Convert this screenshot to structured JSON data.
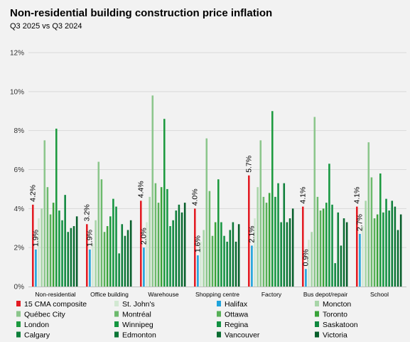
{
  "chart_data": {
    "type": "bar",
    "title": "Non-residential building construction price inflation",
    "subtitle": "Q3 2025 vs Q3 2024",
    "y_unit": "%",
    "ylim": [
      0,
      12
    ],
    "yticks": [
      0,
      2,
      4,
      6,
      8,
      10,
      12
    ],
    "grid": true,
    "legend_position": "bottom",
    "categories": [
      "Non-residential",
      "Office building",
      "Warehouse",
      "Shopping centre",
      "Factory",
      "Bus depot/repair",
      "School"
    ],
    "series": [
      {
        "name": "15 CMA composite",
        "color": "#e31b23",
        "values": [
          4.2,
          3.2,
          4.4,
          4.0,
          5.7,
          4.1,
          4.1
        ],
        "labels": [
          "4.2%",
          "3.2%",
          "4.4%",
          "4.0%",
          "5.7%",
          "4.1%",
          "4.1%"
        ]
      },
      {
        "name": "Halifax",
        "color": "#1fa3dc",
        "values": [
          1.9,
          1.9,
          2.0,
          1.6,
          2.1,
          0.9,
          2.7
        ],
        "labels": [
          "1.9%",
          "1.9%",
          "2.0%",
          "1.6%",
          "2.1%",
          "0.9%",
          "2.7%"
        ]
      },
      {
        "name": "St. John's",
        "color": "#d2e8d2",
        "values": [
          3.5,
          2.2,
          3.3,
          2.3,
          3.5,
          2.4,
          3.1
        ]
      },
      {
        "name": "Moncton",
        "color": "#a8d5a8",
        "values": [
          4.0,
          3.4,
          4.6,
          2.9,
          5.1,
          2.8,
          4.4
        ]
      },
      {
        "name": "Québec City",
        "color": "#8cc68c",
        "values": [
          7.5,
          6.4,
          9.8,
          7.6,
          7.5,
          8.7,
          7.4
        ]
      },
      {
        "name": "Montréal",
        "color": "#6dba6d",
        "values": [
          5.1,
          5.5,
          5.3,
          4.9,
          4.6,
          4.6,
          5.6
        ]
      },
      {
        "name": "Ottawa",
        "color": "#57b057",
        "values": [
          3.7,
          2.8,
          4.3,
          2.6,
          4.3,
          3.9,
          3.5
        ]
      },
      {
        "name": "Toronto",
        "color": "#3aa33a",
        "values": [
          4.3,
          3.1,
          5.1,
          3.3,
          4.8,
          4.0,
          3.7
        ]
      },
      {
        "name": "London",
        "color": "#1d9a3f",
        "values": [
          8.1,
          3.6,
          8.6,
          5.5,
          9.0,
          4.3,
          5.8
        ]
      },
      {
        "name": "Winnipeg",
        "color": "#159640",
        "values": [
          3.9,
          4.5,
          5.0,
          3.3,
          4.6,
          6.3,
          3.8
        ]
      },
      {
        "name": "Regina",
        "color": "#129142",
        "values": [
          3.4,
          4.1,
          3.1,
          2.6,
          5.3,
          4.2,
          4.5
        ]
      },
      {
        "name": "Saskatoon",
        "color": "#10883f",
        "values": [
          4.7,
          1.7,
          3.4,
          2.3,
          3.3,
          1.2,
          3.9
        ]
      },
      {
        "name": "Calgary",
        "color": "#0e7f3a",
        "values": [
          2.8,
          3.2,
          3.9,
          2.9,
          5.3,
          3.8,
          4.4
        ]
      },
      {
        "name": "Edmonton",
        "color": "#0c7636",
        "values": [
          3.0,
          2.6,
          4.2,
          3.3,
          3.3,
          2.1,
          4.1
        ]
      },
      {
        "name": "Vancouver",
        "color": "#0a6c31",
        "values": [
          3.1,
          2.9,
          3.8,
          2.3,
          3.5,
          3.5,
          2.9
        ]
      },
      {
        "name": "Victoria",
        "color": "#075e2a",
        "values": [
          3.6,
          3.4,
          4.3,
          3.2,
          4.0,
          3.3,
          3.7
        ]
      }
    ],
    "bar_order": [
      "15 CMA composite",
      "Halifax",
      "St. John's",
      "Moncton",
      "Québec City",
      "Montréal",
      "Ottawa",
      "Toronto",
      "London",
      "Winnipeg",
      "Regina",
      "Saskatoon",
      "Calgary",
      "Edmonton",
      "Vancouver",
      "Victoria"
    ],
    "legend_order": [
      "15 CMA composite",
      "St. John's",
      "Halifax",
      "Moncton",
      "Québec City",
      "Montréal",
      "Ottawa",
      "Toronto",
      "London",
      "Winnipeg",
      "Regina",
      "Saskatoon",
      "Calgary",
      "Edmonton",
      "Vancouver",
      "Victoria"
    ]
  }
}
